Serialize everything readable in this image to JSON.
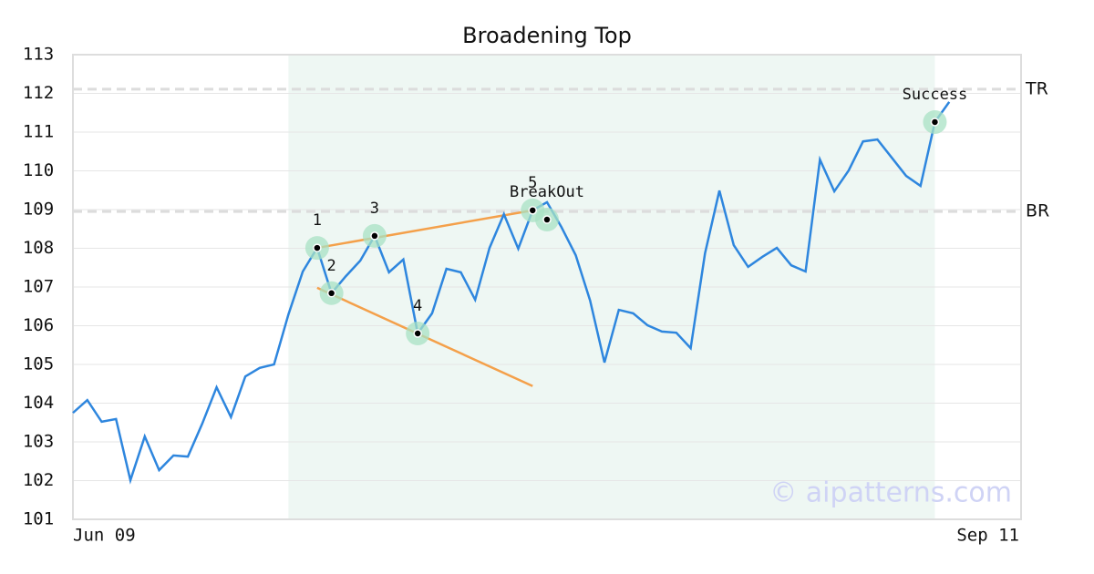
{
  "chart_data": {
    "type": "line",
    "title": "Broadening Top",
    "categories": [
      "Jun 09",
      null,
      null,
      null,
      null,
      null,
      null,
      null,
      null,
      null,
      null,
      null,
      null,
      null,
      null,
      null,
      null,
      null,
      null,
      null,
      null,
      null,
      null,
      null,
      null,
      null,
      null,
      null,
      null,
      null,
      null,
      null,
      null,
      null,
      null,
      null,
      null,
      null,
      null,
      null,
      null,
      null,
      null,
      null,
      null,
      null,
      null,
      null,
      null,
      null,
      null,
      null,
      null,
      null,
      null,
      null,
      null,
      null,
      null,
      null,
      null,
      null,
      null,
      null,
      null,
      null,
      "Sep 11"
    ],
    "values": [
      103.75,
      104.08,
      103.52,
      103.59,
      102.01,
      103.14,
      102.27,
      102.65,
      102.62,
      103.47,
      104.41,
      103.64,
      104.69,
      104.91,
      105.0,
      106.29,
      107.4,
      108.01,
      106.84,
      107.28,
      107.68,
      108.32,
      107.38,
      107.71,
      105.8,
      106.32,
      107.47,
      107.38,
      106.67,
      108.01,
      108.88,
      107.99,
      108.98,
      109.19,
      108.55,
      107.82,
      106.65,
      105.05,
      106.41,
      106.32,
      106.01,
      105.85,
      105.82,
      105.42,
      107.87,
      109.49,
      108.08,
      107.52,
      107.78,
      108.01,
      107.56,
      107.4,
      110.29,
      109.47,
      110.01,
      110.76,
      110.81,
      110.34,
      109.87,
      109.61,
      111.26,
      111.78,
      null,
      null,
      null,
      null,
      null
    ],
    "color": "#2e86de",
    "ylim": [
      101,
      113
    ],
    "yticks": [
      101,
      102,
      103,
      104,
      105,
      106,
      107,
      108,
      109,
      110,
      111,
      112,
      113
    ],
    "grid": true,
    "highlight": [
      15,
      60
    ],
    "levels": [
      {
        "label": "TR",
        "value": 112.11
      },
      {
        "label": "BR",
        "value": 108.95
      }
    ],
    "trendlines": [
      {
        "x": [
          17,
          32
        ],
        "y": [
          108.01,
          108.98
        ]
      },
      {
        "x": [
          17,
          32
        ],
        "y": [
          106.98,
          104.44
        ]
      }
    ],
    "trendline_color": "#f4a04a",
    "points": [
      {
        "label": "1",
        "x": 17,
        "y": 108.01
      },
      {
        "label": "2",
        "x": 18,
        "y": 106.84
      },
      {
        "label": "3",
        "x": 21,
        "y": 108.32
      },
      {
        "label": "4",
        "x": 24,
        "y": 105.8
      },
      {
        "label": "5",
        "x": 32,
        "y": 108.98
      },
      {
        "label": "BreakOut",
        "x": 33,
        "y": 108.74
      },
      {
        "label": "Success",
        "x": 60,
        "y": 111.26
      }
    ],
    "watermark": "© aipatterns.com"
  }
}
